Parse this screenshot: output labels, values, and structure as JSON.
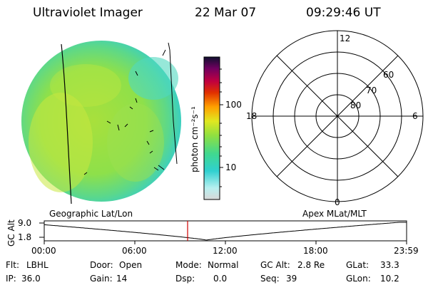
{
  "header": {
    "title": "Ultraviolet Imager",
    "date": "22 Mar 07",
    "time": "09:29:46 UT"
  },
  "colorbar": {
    "unit_label": "photon cm⁻²s⁻¹",
    "ticks": [
      "100",
      "10"
    ],
    "log_scale": true
  },
  "polar_plot": {
    "mlt_labels": {
      "top": "12",
      "left": "18",
      "right": "6",
      "bottom": "0"
    },
    "lat_labels": [
      "60",
      "70",
      "80"
    ]
  },
  "timeline": {
    "y_title": "GC Alt",
    "y_ticks": [
      "9.0",
      "1.8"
    ],
    "left_caption": "Geographic Lat/Lon",
    "right_caption": "Apex MLat/MLT",
    "x_ticks": [
      "00:00",
      "06:00",
      "12:00",
      "18:00",
      "23:59"
    ],
    "marker_time": "09:29:46",
    "line_color": "#000000",
    "marker_color": "#d00000"
  },
  "status": {
    "row1": [
      {
        "label": "Flt:",
        "value": "LBHL"
      },
      {
        "label": "Door:",
        "value": "Open"
      },
      {
        "label": "Mode:",
        "value": "Normal"
      },
      {
        "label": "GC Alt:",
        "value": "2.8 Re"
      },
      {
        "label": "GLat:",
        "value": "33.3"
      }
    ],
    "row2": [
      {
        "label": "IP:",
        "value": "36.0"
      },
      {
        "label": "Gain:",
        "value": "14"
      },
      {
        "label": "Dsp:",
        "value": "0.0"
      },
      {
        "label": "Seq:",
        "value": "39"
      },
      {
        "label": "GLon:",
        "value": "10.2"
      }
    ]
  },
  "colors": {
    "disk_main": "#8ee04a",
    "disk_edge": "#3ccfc0",
    "disk_bright": "#d6e83a"
  }
}
